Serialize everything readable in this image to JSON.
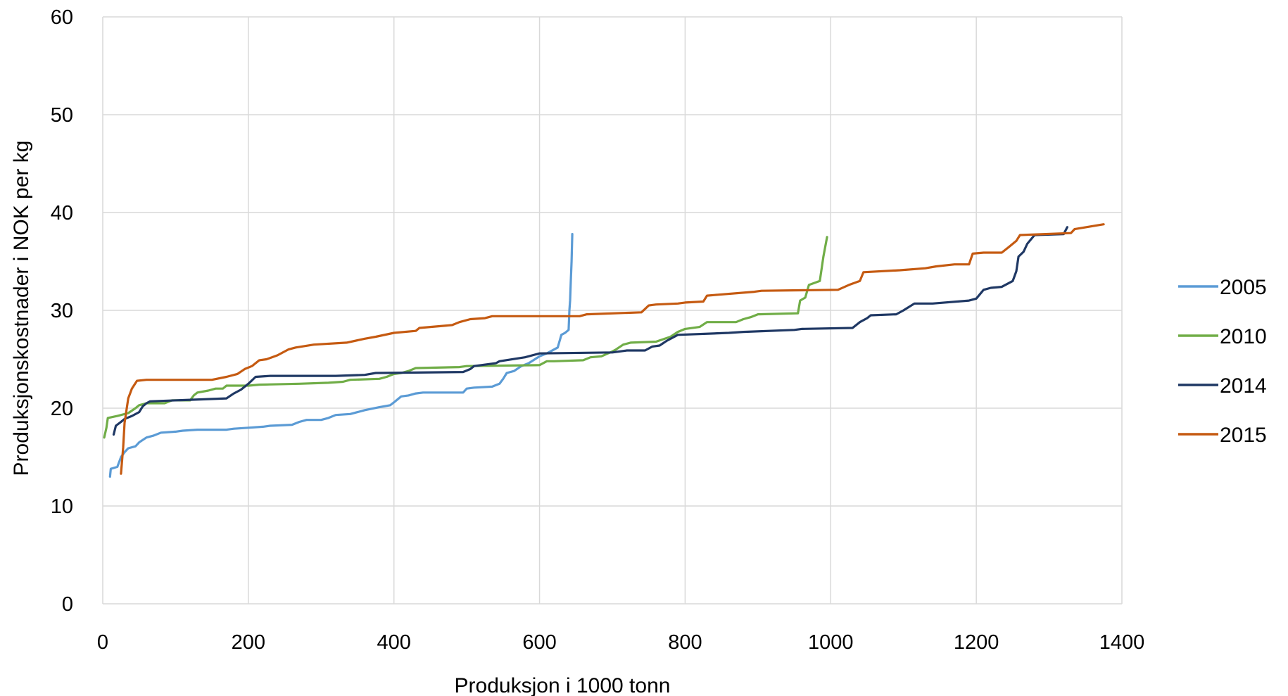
{
  "chart_data": {
    "type": "line",
    "title": "",
    "xlabel": "Produksjon i 1000 tonn",
    "ylabel": "Produksjonskostnader i NOK per kg",
    "xlim": [
      0,
      1400
    ],
    "ylim": [
      0,
      60
    ],
    "xticks": [
      "0",
      "200",
      "400",
      "600",
      "800",
      "1000",
      "1200",
      "1400"
    ],
    "yticks": [
      "0",
      "10",
      "20",
      "30",
      "40",
      "50",
      "60"
    ],
    "grid": true,
    "legend_position": "right",
    "series": [
      {
        "name": "2005",
        "color": "#5b9bd5",
        "points": [
          [
            10,
            13
          ],
          [
            11,
            13.8
          ],
          [
            20,
            14
          ],
          [
            25,
            15
          ],
          [
            30,
            15.5
          ],
          [
            35,
            15.9
          ],
          [
            45,
            16.1
          ],
          [
            50,
            16.5
          ],
          [
            60,
            17
          ],
          [
            70,
            17.2
          ],
          [
            80,
            17.5
          ],
          [
            100,
            17.6
          ],
          [
            110,
            17.7
          ],
          [
            130,
            17.8
          ],
          [
            170,
            17.8
          ],
          [
            180,
            17.9
          ],
          [
            200,
            18
          ],
          [
            220,
            18.1
          ],
          [
            230,
            18.2
          ],
          [
            260,
            18.3
          ],
          [
            270,
            18.6
          ],
          [
            280,
            18.8
          ],
          [
            300,
            18.8
          ],
          [
            310,
            19
          ],
          [
            320,
            19.3
          ],
          [
            340,
            19.4
          ],
          [
            350,
            19.6
          ],
          [
            360,
            19.8
          ],
          [
            380,
            20.1
          ],
          [
            395,
            20.3
          ],
          [
            400,
            20.6
          ],
          [
            405,
            20.9
          ],
          [
            410,
            21.2
          ],
          [
            420,
            21.3
          ],
          [
            430,
            21.5
          ],
          [
            440,
            21.6
          ],
          [
            495,
            21.6
          ],
          [
            500,
            22
          ],
          [
            510,
            22.1
          ],
          [
            535,
            22.2
          ],
          [
            545,
            22.5
          ],
          [
            550,
            23
          ],
          [
            555,
            23.6
          ],
          [
            565,
            23.8
          ],
          [
            575,
            24.3
          ],
          [
            585,
            24.6
          ],
          [
            600,
            25.3
          ],
          [
            610,
            25.6
          ],
          [
            625,
            26.2
          ],
          [
            630,
            27.5
          ],
          [
            635,
            27.7
          ],
          [
            640,
            28
          ],
          [
            641,
            30
          ],
          [
            642,
            31
          ],
          [
            643,
            33
          ],
          [
            644,
            35
          ],
          [
            645,
            37.8
          ]
        ]
      },
      {
        "name": "2010",
        "color": "#70ad47",
        "points": [
          [
            2,
            17
          ],
          [
            5,
            18
          ],
          [
            7,
            19
          ],
          [
            20,
            19.2
          ],
          [
            35,
            19.5
          ],
          [
            45,
            20
          ],
          [
            50,
            20.3
          ],
          [
            60,
            20.5
          ],
          [
            85,
            20.5
          ],
          [
            95,
            20.8
          ],
          [
            120,
            20.8
          ],
          [
            125,
            21.3
          ],
          [
            130,
            21.6
          ],
          [
            145,
            21.8
          ],
          [
            155,
            22
          ],
          [
            165,
            22
          ],
          [
            170,
            22.3
          ],
          [
            200,
            22.3
          ],
          [
            215,
            22.4
          ],
          [
            270,
            22.5
          ],
          [
            310,
            22.6
          ],
          [
            330,
            22.7
          ],
          [
            340,
            22.9
          ],
          [
            380,
            23
          ],
          [
            390,
            23.2
          ],
          [
            400,
            23.5
          ],
          [
            410,
            23.6
          ],
          [
            420,
            23.8
          ],
          [
            430,
            24.1
          ],
          [
            490,
            24.2
          ],
          [
            500,
            24.3
          ],
          [
            600,
            24.4
          ],
          [
            610,
            24.8
          ],
          [
            620,
            24.8
          ],
          [
            660,
            24.9
          ],
          [
            670,
            25.2
          ],
          [
            685,
            25.3
          ],
          [
            700,
            25.8
          ],
          [
            705,
            26
          ],
          [
            715,
            26.5
          ],
          [
            725,
            26.7
          ],
          [
            760,
            26.8
          ],
          [
            780,
            27.3
          ],
          [
            790,
            27.8
          ],
          [
            800,
            28.1
          ],
          [
            820,
            28.3
          ],
          [
            830,
            28.8
          ],
          [
            870,
            28.8
          ],
          [
            880,
            29.1
          ],
          [
            890,
            29.3
          ],
          [
            900,
            29.6
          ],
          [
            955,
            29.7
          ],
          [
            958,
            31
          ],
          [
            965,
            31.3
          ],
          [
            970,
            32.6
          ],
          [
            985,
            33
          ],
          [
            990,
            35.5
          ],
          [
            995,
            37.5
          ]
        ]
      },
      {
        "name": "2014",
        "color": "#1f3864",
        "points": [
          [
            15,
            17.3
          ],
          [
            18,
            18.2
          ],
          [
            25,
            18.6
          ],
          [
            30,
            18.9
          ],
          [
            40,
            19.2
          ],
          [
            50,
            19.6
          ],
          [
            55,
            20.2
          ],
          [
            60,
            20.5
          ],
          [
            65,
            20.7
          ],
          [
            170,
            21
          ],
          [
            180,
            21.5
          ],
          [
            190,
            21.9
          ],
          [
            200,
            22.5
          ],
          [
            210,
            23.2
          ],
          [
            230,
            23.3
          ],
          [
            320,
            23.3
          ],
          [
            360,
            23.4
          ],
          [
            375,
            23.6
          ],
          [
            495,
            23.7
          ],
          [
            505,
            24
          ],
          [
            510,
            24.3
          ],
          [
            540,
            24.6
          ],
          [
            545,
            24.8
          ],
          [
            580,
            25.2
          ],
          [
            600,
            25.6
          ],
          [
            700,
            25.7
          ],
          [
            720,
            25.9
          ],
          [
            745,
            25.9
          ],
          [
            755,
            26.3
          ],
          [
            765,
            26.4
          ],
          [
            775,
            26.9
          ],
          [
            790,
            27.5
          ],
          [
            860,
            27.7
          ],
          [
            880,
            27.8
          ],
          [
            950,
            28
          ],
          [
            960,
            28.1
          ],
          [
            1030,
            28.2
          ],
          [
            1040,
            28.8
          ],
          [
            1050,
            29.2
          ],
          [
            1055,
            29.5
          ],
          [
            1090,
            29.6
          ],
          [
            1100,
            30
          ],
          [
            1115,
            30.7
          ],
          [
            1140,
            30.7
          ],
          [
            1190,
            31
          ],
          [
            1200,
            31.2
          ],
          [
            1210,
            32.1
          ],
          [
            1220,
            32.3
          ],
          [
            1235,
            32.4
          ],
          [
            1245,
            32.8
          ],
          [
            1250,
            33
          ],
          [
            1255,
            34
          ],
          [
            1258,
            35.5
          ],
          [
            1265,
            36
          ],
          [
            1270,
            36.8
          ],
          [
            1280,
            37.7
          ],
          [
            1320,
            37.8
          ],
          [
            1325,
            38.5
          ]
        ]
      },
      {
        "name": "2015",
        "color": "#c55a11",
        "points": [
          [
            25,
            13.3
          ],
          [
            28,
            16
          ],
          [
            30,
            18.5
          ],
          [
            35,
            21
          ],
          [
            40,
            22
          ],
          [
            47,
            22.8
          ],
          [
            60,
            22.9
          ],
          [
            150,
            22.9
          ],
          [
            170,
            23.2
          ],
          [
            185,
            23.5
          ],
          [
            195,
            24
          ],
          [
            205,
            24.3
          ],
          [
            215,
            24.9
          ],
          [
            225,
            25
          ],
          [
            240,
            25.4
          ],
          [
            255,
            26
          ],
          [
            265,
            26.2
          ],
          [
            290,
            26.5
          ],
          [
            335,
            26.7
          ],
          [
            360,
            27.1
          ],
          [
            375,
            27.3
          ],
          [
            400,
            27.7
          ],
          [
            430,
            27.9
          ],
          [
            435,
            28.2
          ],
          [
            450,
            28.3
          ],
          [
            480,
            28.5
          ],
          [
            490,
            28.8
          ],
          [
            505,
            29.1
          ],
          [
            525,
            29.2
          ],
          [
            535,
            29.4
          ],
          [
            655,
            29.4
          ],
          [
            665,
            29.6
          ],
          [
            740,
            29.8
          ],
          [
            750,
            30.5
          ],
          [
            760,
            30.6
          ],
          [
            790,
            30.7
          ],
          [
            800,
            30.8
          ],
          [
            825,
            30.9
          ],
          [
            830,
            31.5
          ],
          [
            845,
            31.6
          ],
          [
            895,
            31.9
          ],
          [
            905,
            32
          ],
          [
            1010,
            32.1
          ],
          [
            1025,
            32.6
          ],
          [
            1040,
            33
          ],
          [
            1045,
            33.9
          ],
          [
            1095,
            34.1
          ],
          [
            1130,
            34.3
          ],
          [
            1145,
            34.5
          ],
          [
            1170,
            34.7
          ],
          [
            1190,
            34.7
          ],
          [
            1195,
            35.8
          ],
          [
            1210,
            35.9
          ],
          [
            1235,
            35.9
          ],
          [
            1245,
            36.5
          ],
          [
            1255,
            37.1
          ],
          [
            1260,
            37.7
          ],
          [
            1330,
            37.9
          ],
          [
            1335,
            38.3
          ],
          [
            1375,
            38.8
          ]
        ]
      }
    ]
  }
}
